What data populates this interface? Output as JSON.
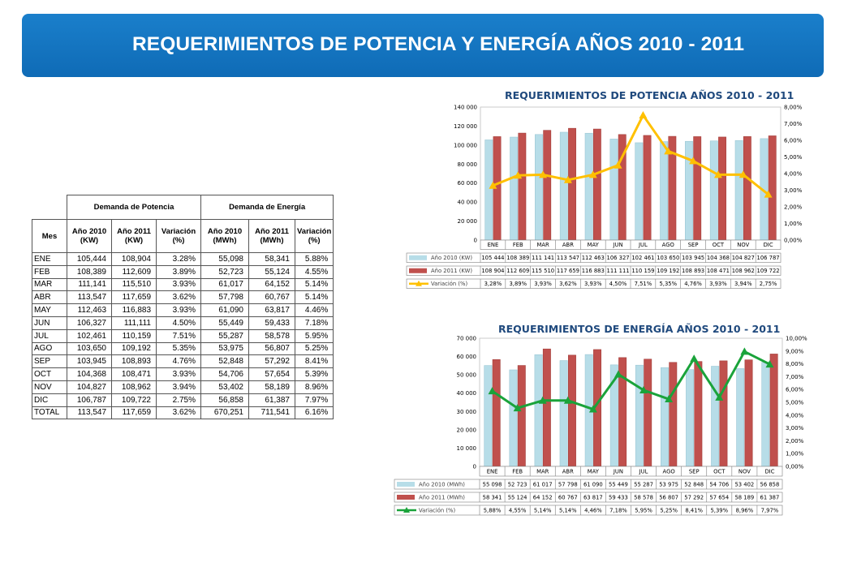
{
  "header": {
    "title": "REQUERIMIENTOS DE POTENCIA Y ENERGÍA AÑOS 2010 - 2011"
  },
  "table": {
    "group_headers": [
      "Demanda de Potencia",
      "Demanda de Energía"
    ],
    "col_headers": [
      "Mes",
      "Año 2010 (KW)",
      "Año 2011 (KW)",
      "Variación (%)",
      "Año 2010 (MWh)",
      "Año 2011 (MWh)",
      "Variación (%)"
    ],
    "rows": [
      [
        "ENE",
        "105,444",
        "108,904",
        "3.28%",
        "55,098",
        "58,341",
        "5.88%"
      ],
      [
        "FEB",
        "108,389",
        "112,609",
        "3.89%",
        "52,723",
        "55,124",
        "4.55%"
      ],
      [
        "MAR",
        "111,141",
        "115,510",
        "3.93%",
        "61,017",
        "64,152",
        "5.14%"
      ],
      [
        "ABR",
        "113,547",
        "117,659",
        "3.62%",
        "57,798",
        "60,767",
        "5.14%"
      ],
      [
        "MAY",
        "112,463",
        "116,883",
        "3.93%",
        "61,090",
        "63,817",
        "4.46%"
      ],
      [
        "JUN",
        "106,327",
        "111,111",
        "4.50%",
        "55,449",
        "59,433",
        "7.18%"
      ],
      [
        "JUL",
        "102,461",
        "110,159",
        "7.51%",
        "55,287",
        "58,578",
        "5.95%"
      ],
      [
        "AGO",
        "103,650",
        "109,192",
        "5.35%",
        "53,975",
        "56,807",
        "5.25%"
      ],
      [
        "SEP",
        "103,945",
        "108,893",
        "4.76%",
        "52,848",
        "57,292",
        "8.41%"
      ],
      [
        "OCT",
        "104,368",
        "108,471",
        "3.93%",
        "54,706",
        "57,654",
        "5.39%"
      ],
      [
        "NOV",
        "104,827",
        "108,962",
        "3.94%",
        "53,402",
        "58,189",
        "8.96%"
      ],
      [
        "DIC",
        "106,787",
        "109,722",
        "2.75%",
        "56,858",
        "61,387",
        "7.97%"
      ],
      [
        "TOTAL",
        "113,547",
        "117,659",
        "3.62%",
        "670,251",
        "711,541",
        "6.16%"
      ]
    ]
  },
  "colors": {
    "bar2010": "#b7dde8",
    "bar2011": "#c0504d",
    "power_line": "#ffc000",
    "energy_line": "#1aa33a",
    "title": "#1f497d"
  },
  "chart_data": [
    {
      "type": "bar",
      "title": "REQUERIMIENTOS DE POTENCIA AÑOS 2010 - 2011",
      "categories": [
        "ENE",
        "FEB",
        "MAR",
        "ABR",
        "MAY",
        "JUN",
        "JUL",
        "AGO",
        "SEP",
        "OCT",
        "NOV",
        "DIC"
      ],
      "ylim": [
        0,
        140000
      ],
      "yticks": [
        "0",
        "20 000",
        "40 000",
        "60 000",
        "80 000",
        "100 000",
        "120 000",
        "140 000"
      ],
      "y2lim": [
        0,
        8
      ],
      "y2ticks": [
        "0,00%",
        "1,00%",
        "2,00%",
        "3,00%",
        "4,00%",
        "5,00%",
        "6,00%",
        "7,00%",
        "8,00%"
      ],
      "series": [
        {
          "name": "Año 2010 (KW)",
          "type": "bar",
          "axis": "left",
          "values": [
            105444,
            108389,
            111141,
            113547,
            112463,
            106327,
            102461,
            103650,
            103945,
            104368,
            104827,
            106787
          ],
          "labels": [
            "105 444",
            "108 389",
            "111 141",
            "113 547",
            "112 463",
            "106 327",
            "102 461",
            "103 650",
            "103 945",
            "104 368",
            "104 827",
            "106 787"
          ]
        },
        {
          "name": "Año 2011 (KW)",
          "type": "bar",
          "axis": "left",
          "values": [
            108904,
            112609,
            115510,
            117659,
            116883,
            111111,
            110159,
            109192,
            108893,
            108471,
            108962,
            109722
          ],
          "labels": [
            "108 904",
            "112 609",
            "115 510",
            "117 659",
            "116 883",
            "111 111",
            "110 159",
            "109 192",
            "108 893",
            "108 471",
            "108 962",
            "109 722"
          ]
        },
        {
          "name": "Variación (%)",
          "type": "line",
          "axis": "right",
          "values": [
            3.28,
            3.89,
            3.93,
            3.62,
            3.93,
            4.5,
            7.51,
            5.35,
            4.76,
            3.93,
            3.94,
            2.75
          ],
          "labels": [
            "3,28%",
            "3,89%",
            "3,93%",
            "3,62%",
            "3,93%",
            "4,50%",
            "7,51%",
            "5,35%",
            "4,76%",
            "3,93%",
            "3,94%",
            "2,75%"
          ]
        }
      ]
    },
    {
      "type": "bar",
      "title": "REQUERIMIENTOS DE ENERGÍA AÑOS 2010 - 2011",
      "categories": [
        "ENE",
        "FEB",
        "MAR",
        "ABR",
        "MAY",
        "JUN",
        "JUL",
        "AGO",
        "SEP",
        "OCT",
        "NOV",
        "DIC"
      ],
      "ylim": [
        0,
        70000
      ],
      "yticks": [
        "0",
        "10 000",
        "20 000",
        "30 000",
        "40 000",
        "50 000",
        "60 000",
        "70 000"
      ],
      "y2lim": [
        0,
        10
      ],
      "y2ticks": [
        "0,00%",
        "1,00%",
        "2,00%",
        "3,00%",
        "4,00%",
        "5,00%",
        "6,00%",
        "7,00%",
        "8,00%",
        "9,00%",
        "10,00%"
      ],
      "series": [
        {
          "name": "Año 2010 (MWh)",
          "type": "bar",
          "axis": "left",
          "values": [
            55098,
            52723,
            61017,
            57798,
            61090,
            55449,
            55287,
            53975,
            52848,
            54706,
            53402,
            56858
          ],
          "labels": [
            "55 098",
            "52 723",
            "61 017",
            "57 798",
            "61 090",
            "55 449",
            "55 287",
            "53 975",
            "52 848",
            "54 706",
            "53 402",
            "56 858"
          ]
        },
        {
          "name": "Año 2011 (MWh)",
          "type": "bar",
          "axis": "left",
          "values": [
            58341,
            55124,
            64152,
            60767,
            63817,
            59433,
            58578,
            56807,
            57292,
            57654,
            58189,
            61387
          ],
          "labels": [
            "58 341",
            "55 124",
            "64 152",
            "60 767",
            "63 817",
            "59 433",
            "58 578",
            "56 807",
            "57 292",
            "57 654",
            "58 189",
            "61 387"
          ]
        },
        {
          "name": "Variación (%)",
          "type": "line",
          "axis": "right",
          "values": [
            5.88,
            4.55,
            5.14,
            5.14,
            4.46,
            7.18,
            5.95,
            5.25,
            8.41,
            5.39,
            8.96,
            7.97
          ],
          "labels": [
            "5,88%",
            "4,55%",
            "5,14%",
            "5,14%",
            "4,46%",
            "7,18%",
            "5,95%",
            "5,25%",
            "8,41%",
            "5,39%",
            "8,96%",
            "7,97%"
          ]
        }
      ]
    }
  ]
}
